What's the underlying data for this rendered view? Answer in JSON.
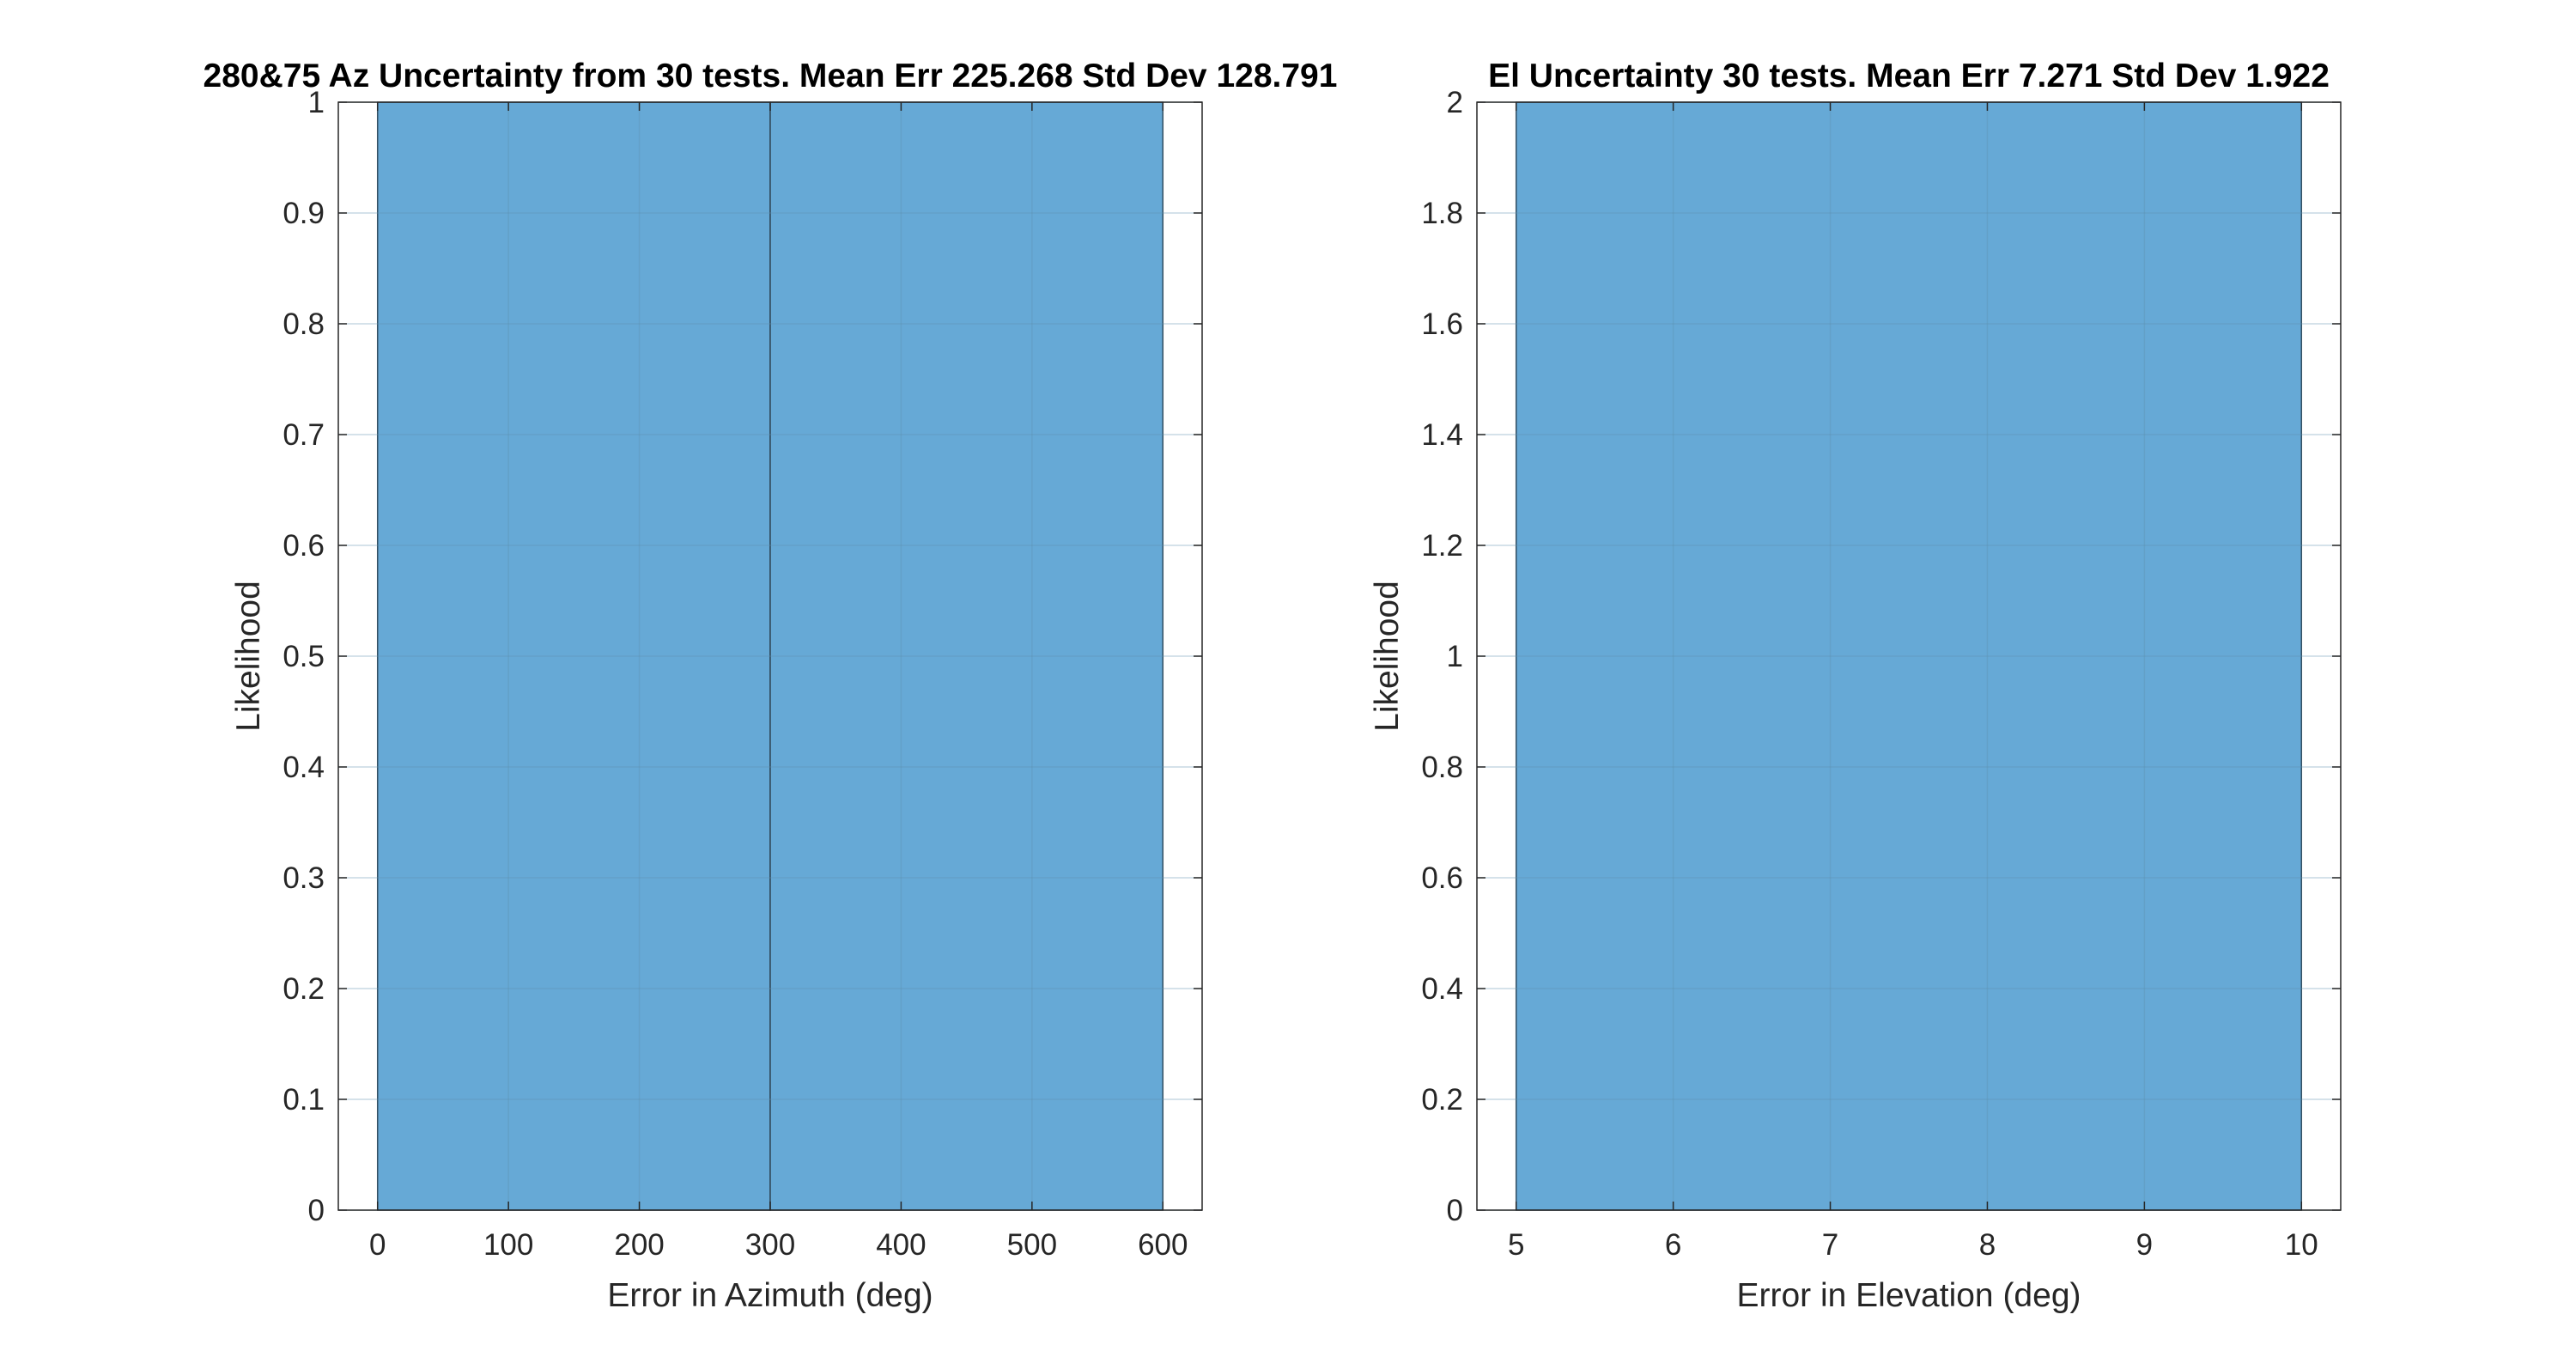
{
  "chart_data": [
    {
      "type": "bar",
      "title": "280&75 Az Uncertainty from 30 tests. Mean Err 225.268 Std Dev 128.791",
      "xlabel": "Error in Azimuth (deg)",
      "ylabel": "Likelihood",
      "xlim": [
        -30,
        630
      ],
      "ylim": [
        0,
        1
      ],
      "xticks": [
        0,
        100,
        200,
        300,
        400,
        500,
        600
      ],
      "yticks": [
        0,
        0.1,
        0.2,
        0.3,
        0.4,
        0.5,
        0.6,
        0.7,
        0.8,
        0.9,
        1
      ],
      "grid": true,
      "bins": [
        {
          "x0": 0,
          "x1": 300,
          "value": 1
        },
        {
          "x0": 300,
          "x1": 600,
          "value": 1
        }
      ]
    },
    {
      "type": "bar",
      "title": "El Uncertainty 30 tests. Mean Err 7.271 Std Dev 1.922",
      "xlabel": "Error in Elevation (deg)",
      "ylabel": "Likelihood",
      "xlim": [
        4.75,
        10.25
      ],
      "ylim": [
        0,
        2
      ],
      "xticks": [
        5,
        6,
        7,
        8,
        9,
        10
      ],
      "yticks": [
        0,
        0.2,
        0.4,
        0.6,
        0.8,
        1,
        1.2,
        1.4,
        1.6,
        1.8,
        2
      ],
      "grid": true,
      "bins": [
        {
          "x0": 5,
          "x1": 10,
          "value": 2
        }
      ]
    }
  ],
  "colors": {
    "bar_fill": "#66a9d6",
    "bar_edge": "#1f2f3a",
    "axis": "#262626",
    "grid": "#5f8fb0",
    "title": "#000000",
    "background": "#ffffff"
  }
}
